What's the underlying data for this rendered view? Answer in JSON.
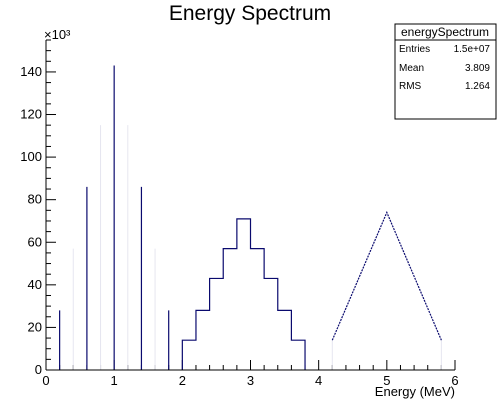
{
  "chart_data": {
    "type": "bar",
    "title": "Energy Spectrum",
    "xlabel": "Energy (MeV)",
    "ylabel": "",
    "y_multiplier_label": "×10³",
    "xlim": [
      0,
      6
    ],
    "ylim": [
      0,
      155
    ],
    "x_ticks": [
      "0",
      "1",
      "2",
      "3",
      "4",
      "5",
      "6"
    ],
    "y_ticks": [
      "0",
      "20",
      "40",
      "60",
      "80",
      "100",
      "120",
      "140"
    ],
    "line_color": "#0a0a6e",
    "faint_color": "#e6e6f0",
    "spikes": [
      {
        "x": 0.2,
        "y": 28
      },
      {
        "x": 0.4,
        "y": 57
      },
      {
        "x": 0.6,
        "y": 86
      },
      {
        "x": 0.8,
        "y": 115
      },
      {
        "x": 1.0,
        "y": 143
      },
      {
        "x": 1.2,
        "y": 115
      },
      {
        "x": 1.4,
        "y": 86
      },
      {
        "x": 1.6,
        "y": 57
      },
      {
        "x": 1.8,
        "y": 28
      }
    ],
    "steps": [
      {
        "x0": 2.0,
        "x1": 2.2,
        "y": 14
      },
      {
        "x0": 2.2,
        "x1": 2.4,
        "y": 28
      },
      {
        "x0": 2.4,
        "x1": 2.6,
        "y": 43
      },
      {
        "x0": 2.6,
        "x1": 2.8,
        "y": 57
      },
      {
        "x0": 2.8,
        "x1": 3.0,
        "y": 71
      },
      {
        "x0": 3.0,
        "x1": 3.2,
        "y": 57
      },
      {
        "x0": 3.2,
        "x1": 3.4,
        "y": 43
      },
      {
        "x0": 3.4,
        "x1": 3.6,
        "y": 28
      },
      {
        "x0": 3.6,
        "x1": 3.8,
        "y": 14
      }
    ],
    "triangle": [
      {
        "x": 4.2,
        "y": 14
      },
      {
        "x": 5.0,
        "y": 74
      },
      {
        "x": 5.8,
        "y": 14
      }
    ]
  },
  "stats_box": {
    "name": "energySpectrum",
    "rows": [
      {
        "label": "Entries",
        "value": "1.5e+07"
      },
      {
        "label": "Mean",
        "value": "3.809"
      },
      {
        "label": "RMS",
        "value": "1.264"
      }
    ]
  }
}
